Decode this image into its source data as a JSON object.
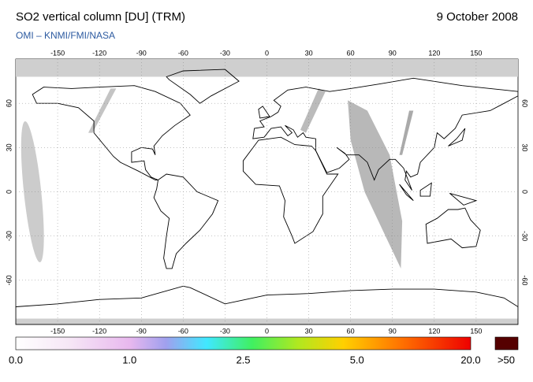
{
  "map": {
    "title": "SO2 vertical column [DU] (TRM)",
    "date": "9 October 2008",
    "credit": "OMI  –  KNMI/FMI/NASA",
    "lon_ticks": [
      -150,
      -120,
      -90,
      -60,
      -30,
      0,
      30,
      60,
      90,
      120,
      150
    ],
    "lat_ticks": [
      60,
      30,
      0,
      -30,
      -60
    ],
    "colorbar": {
      "labels": [
        "0.0",
        "1.0",
        "2.5",
        "5.0",
        "20.0",
        ">50"
      ]
    }
  }
}
